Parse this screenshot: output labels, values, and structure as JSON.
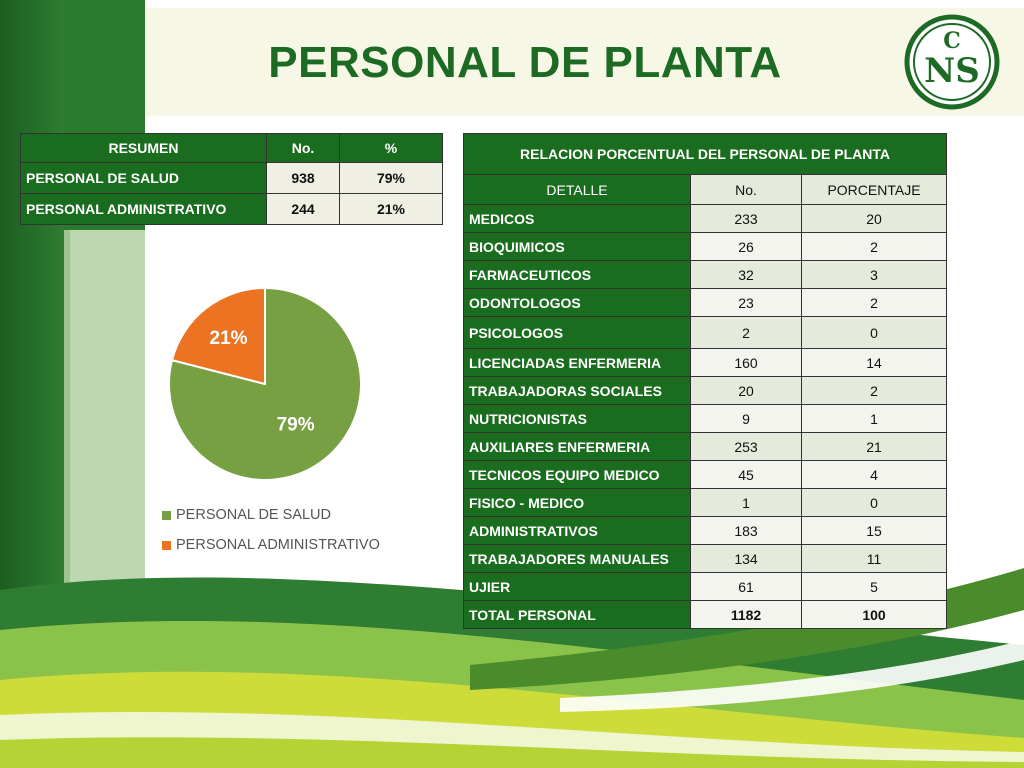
{
  "title": "PERSONAL DE PLANTA",
  "logo": {
    "text": "CNS",
    "icon": "cns-logo-icon"
  },
  "summary_table": {
    "headers": [
      "RESUMEN",
      "No.",
      "%"
    ],
    "rows": [
      {
        "label": "PERSONAL DE SALUD",
        "no": "938",
        "pct": "79%"
      },
      {
        "label": "PERSONAL ADMINISTRATIVO",
        "no": "244",
        "pct": "21%"
      }
    ]
  },
  "detail_table": {
    "caption": "RELACION PORCENTUAL DEL PERSONAL DE PLANTA",
    "headers": [
      "DETALLE",
      "No.",
      "PORCENTAJE"
    ],
    "rows": [
      {
        "label": "MEDICOS",
        "no": "233",
        "pct": "20"
      },
      {
        "label": "BIOQUIMICOS",
        "no": "26",
        "pct": "2"
      },
      {
        "label": "FARMACEUTICOS",
        "no": "32",
        "pct": "3"
      },
      {
        "label": "ODONTOLOGOS",
        "no": "23",
        "pct": "2"
      },
      {
        "label": "PSICOLOGOS",
        "no": "2",
        "pct": "0"
      },
      {
        "label": "LICENCIADAS ENFERMERIA",
        "no": "160",
        "pct": "14"
      },
      {
        "label": "TRABAJADORAS SOCIALES",
        "no": "20",
        "pct": "2"
      },
      {
        "label": "NUTRICIONISTAS",
        "no": "9",
        "pct": "1"
      },
      {
        "label": "AUXILIARES ENFERMERIA",
        "no": "253",
        "pct": "21"
      },
      {
        "label": "TECNICOS EQUIPO MEDICO",
        "no": "45",
        "pct": "4"
      },
      {
        "label": "FISICO - MEDICO",
        "no": "1",
        "pct": "0"
      },
      {
        "label": "ADMINISTRATIVOS",
        "no": "183",
        "pct": "15"
      },
      {
        "label": "TRABAJADORES MANUALES",
        "no": "134",
        "pct": "11"
      },
      {
        "label": "UJIER",
        "no": "61",
        "pct": "5"
      }
    ],
    "total": {
      "label": "TOTAL PERSONAL",
      "no": "1182",
      "pct": "100"
    }
  },
  "chart_data": {
    "type": "pie",
    "slices": [
      {
        "name": "PERSONAL DE SALUD",
        "value": 79,
        "label": "79%",
        "color": "#77a043"
      },
      {
        "name": "PERSONAL ADMINISTRATIVO",
        "value": 21,
        "label": "21%",
        "color": "#ec7322"
      }
    ],
    "legend_position": "bottom"
  },
  "colors": {
    "brand_green": "#1a6c1e",
    "title_green": "#1c6a24"
  }
}
